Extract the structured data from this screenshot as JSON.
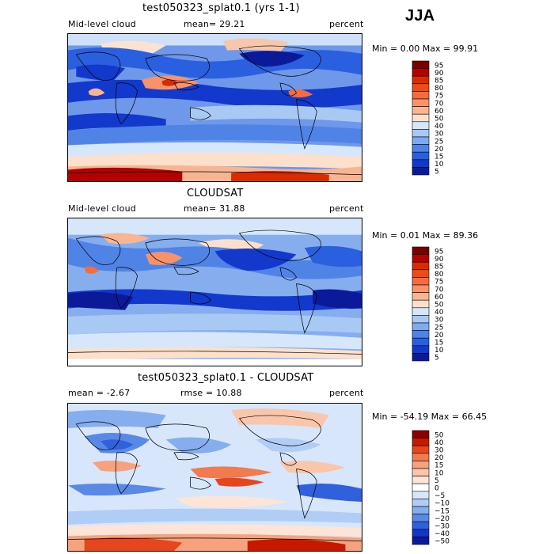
{
  "season": "JJA",
  "panels": [
    {
      "title": "test050323_splat0.1 (yrs 1-1)",
      "left_label": "Mid-level cloud",
      "mid_label": "mean=  29.21",
      "units": "percent",
      "stats": "Min =   0.00 Max =  99.91",
      "levels": [
        "95",
        "90",
        "85",
        "80",
        "75",
        "70",
        "60",
        "50",
        "40",
        "30",
        "25",
        "20",
        "15",
        "10",
        "5"
      ]
    },
    {
      "title": "CLOUDSAT",
      "left_label": "Mid-level cloud",
      "mid_label": "mean=  31.88",
      "units": "percent",
      "stats": "Min =   0.01 Max =  89.36",
      "levels": [
        "95",
        "90",
        "85",
        "80",
        "75",
        "70",
        "60",
        "50",
        "40",
        "30",
        "25",
        "20",
        "15",
        "10",
        "5"
      ]
    },
    {
      "title": "test050323_splat0.1 - CLOUDSAT",
      "left_label": "mean =  -2.67",
      "mid_label": "rmse =  10.88",
      "units": "percent",
      "stats": "Min = -54.19 Max =  66.45",
      "levels": [
        "50",
        "40",
        "30",
        "20",
        "15",
        "10",
        "5",
        "0",
        "−5",
        "−10",
        "−15",
        "−20",
        "−30",
        "−40",
        "−50"
      ]
    }
  ],
  "colors": {
    "abs": [
      "#7a0000",
      "#b30000",
      "#d92b00",
      "#f04a1a",
      "#f56d3f",
      "#f7926a",
      "#f7b593",
      "#fde0cc",
      "#d6e7fb",
      "#a9c9f5",
      "#7eaaee",
      "#4f84e6",
      "#2a5fe0",
      "#1339cc",
      "#0a1a99"
    ],
    "diff": [
      "#8c0000",
      "#c81800",
      "#e6461e",
      "#f27a4f",
      "#f7a27f",
      "#f9c6ac",
      "#fde4d6",
      "#ffffff",
      "#d7e6fb",
      "#b0cdf5",
      "#86aeef",
      "#5a88e6",
      "#3160dc",
      "#1436c8",
      "#0a1a99"
    ]
  }
}
